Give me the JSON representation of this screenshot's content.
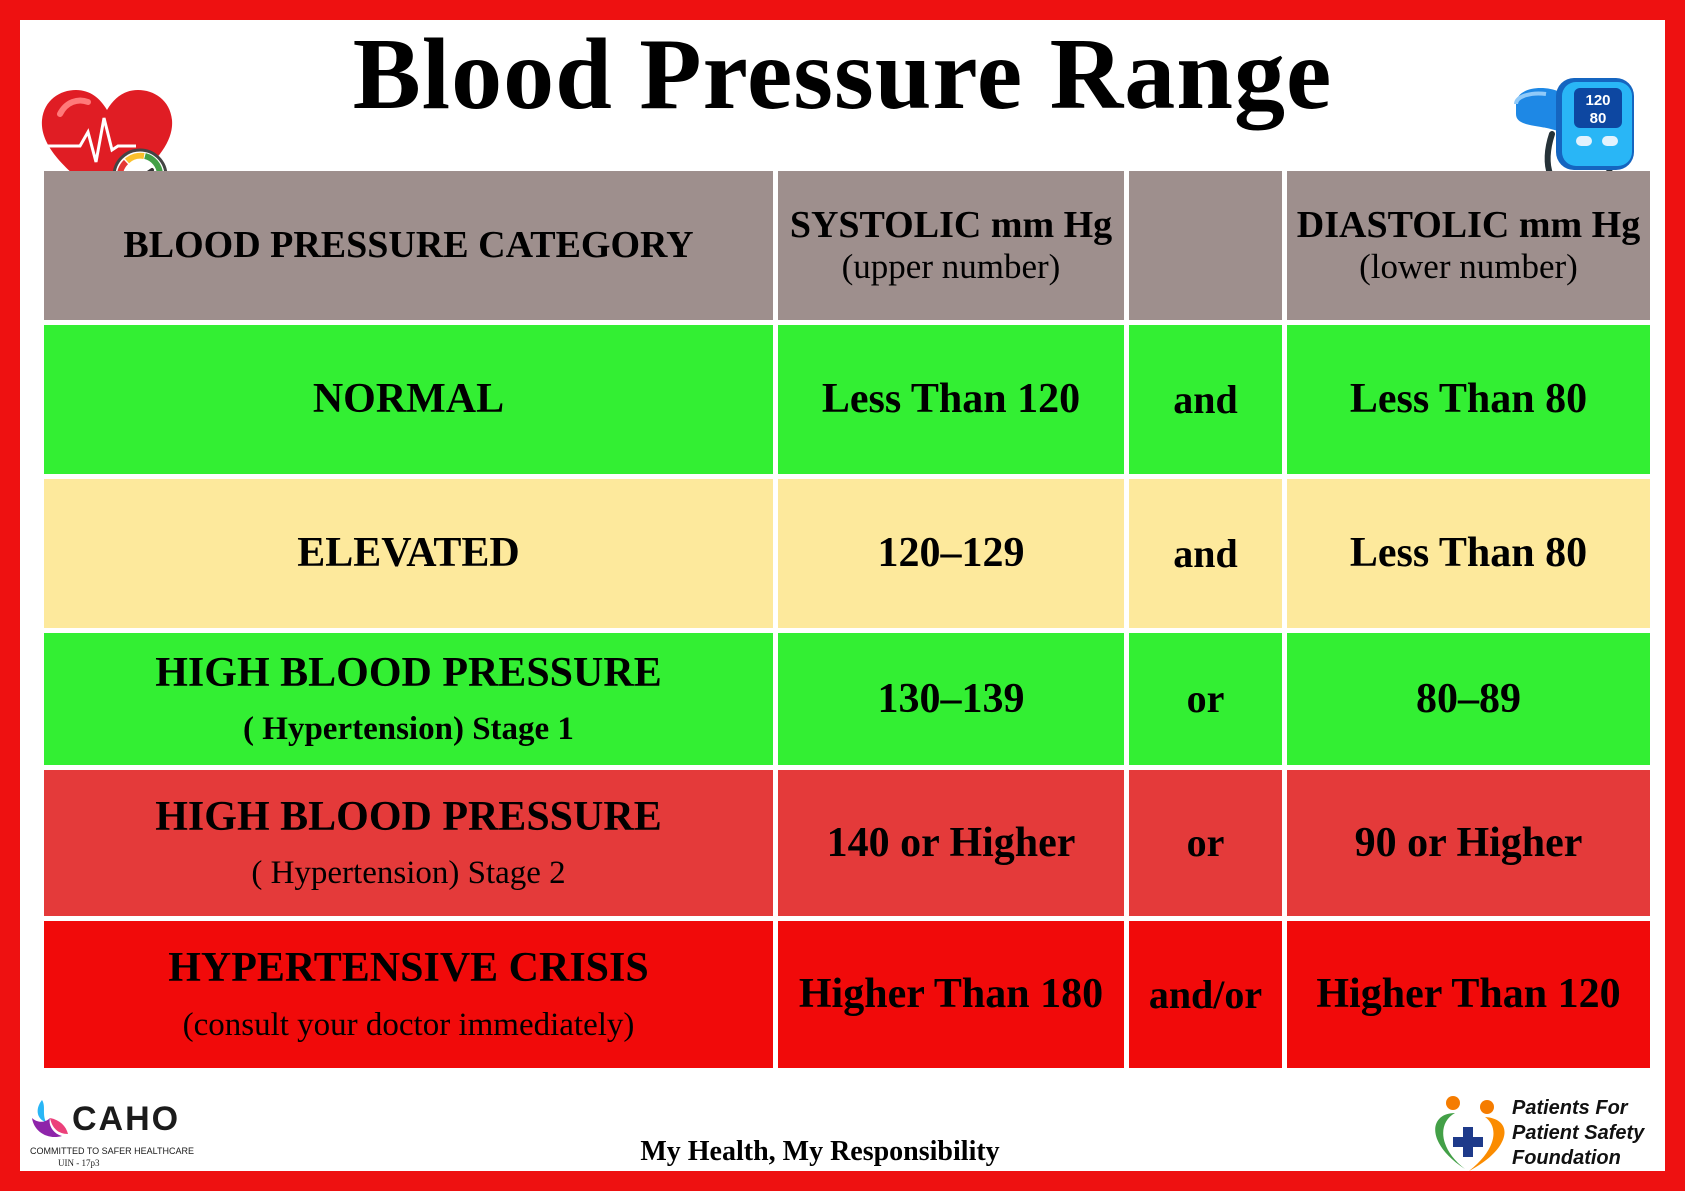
{
  "title": "Blood Pressure Range",
  "header": {
    "category": "BLOOD PRESSURE CATEGORY",
    "systolic": "SYSTOLIC mm Hg",
    "systolic_sub": "(upper number)",
    "diastolic": "DIASTOLIC mm Hg",
    "diastolic_sub": "(lower number)"
  },
  "rows": [
    {
      "category": "NORMAL",
      "systolic": "Less Than 120",
      "conj": "and",
      "diastolic": "Less Than 80"
    },
    {
      "category": "ELEVATED",
      "systolic": "120–129",
      "conj": "and",
      "diastolic": "Less Than 80"
    },
    {
      "category": "HIGH BLOOD PRESSURE",
      "sub": "( Hypertension) Stage 1",
      "systolic": "130–139",
      "conj": "or",
      "diastolic": "80–89"
    },
    {
      "category": "HIGH BLOOD PRESSURE",
      "sub": "( Hypertension) Stage 2",
      "systolic": "140 or Higher",
      "conj": "or",
      "diastolic": "90 or Higher"
    },
    {
      "category": "HYPERTENSIVE CRISIS",
      "sub": "(consult your doctor immediately)",
      "systolic": "Higher Than 180",
      "conj": "and/or",
      "diastolic": "Higher Than 120"
    }
  ],
  "icons": {
    "heart": "heart-gauge-icon",
    "monitor": "blood-pressure-monitor-icon",
    "monitor_top": "120",
    "monitor_bottom": "80"
  },
  "colors": {
    "frame": "#ee1111",
    "header": "#9e8f8d",
    "green": "#33ef33",
    "yellow": "#fde99c",
    "rose": "#e43a3a",
    "red": "#f10a0a"
  },
  "footer": {
    "tagline": "My Health, My Responsibility",
    "caho_name": "CAHO",
    "caho_tagline": "COMMITTED TO SAFER HEALTHCARE",
    "caho_uin": "UIN - 17p3",
    "pps_line1": "Patients For",
    "pps_line2": "Patient Safety",
    "pps_line3": "Foundation"
  }
}
